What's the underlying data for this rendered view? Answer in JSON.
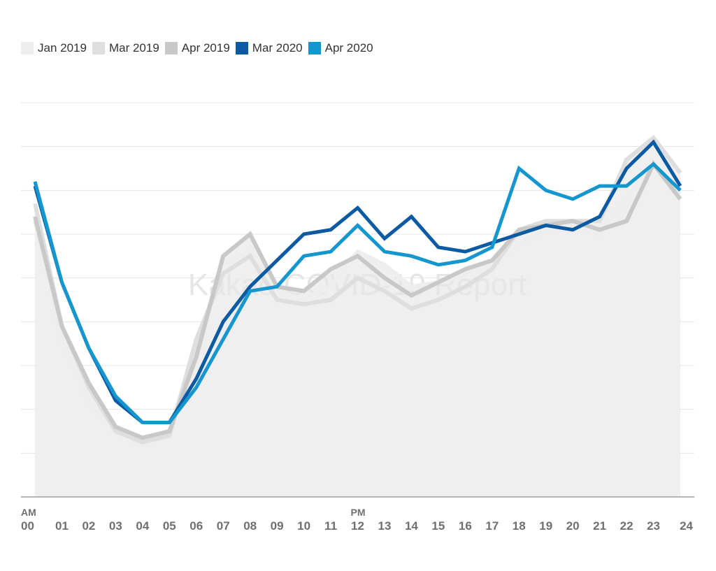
{
  "chart_data": {
    "type": "line",
    "title": "",
    "xlabel": "",
    "ylabel": "",
    "watermark": "Kakao COVID-19 Report",
    "x_tick_labels": [
      "00",
      "01",
      "02",
      "03",
      "04",
      "05",
      "06",
      "07",
      "08",
      "09",
      "10",
      "11",
      "12",
      "13",
      "14",
      "15",
      "16",
      "17",
      "18",
      "19",
      "20",
      "21",
      "22",
      "23",
      "24"
    ],
    "period_labels": [
      {
        "label": "AM",
        "at_index": 0
      },
      {
        "label": "PM",
        "at_index": 12
      }
    ],
    "ylim": [
      0,
      9
    ],
    "grid": true,
    "legend": "top-left",
    "series": [
      {
        "name": "Jan 2019",
        "color": "#eeeeee",
        "values": [
          6.3,
          3.6,
          2.2,
          1.45,
          1.2,
          1.5,
          3.3,
          5.3,
          5.6,
          4.7,
          4.5,
          4.8,
          5.6,
          5.3,
          4.8,
          4.9,
          5.1,
          5.3,
          5.8,
          6.1,
          6.1,
          6.0,
          6.8,
          7.6,
          7.0
        ]
      },
      {
        "name": "Mar 2019",
        "color": "#dedede",
        "values": [
          6.7,
          3.9,
          2.5,
          1.5,
          1.25,
          1.4,
          3.6,
          5.1,
          5.5,
          4.5,
          4.4,
          4.5,
          5.0,
          4.7,
          4.3,
          4.5,
          4.8,
          5.2,
          6.1,
          6.3,
          6.3,
          6.3,
          7.7,
          8.2,
          7.4
        ]
      },
      {
        "name": "Apr 2019",
        "color": "#c8c8c8",
        "values": [
          6.4,
          3.9,
          2.6,
          1.6,
          1.35,
          1.5,
          3.2,
          5.5,
          6.0,
          4.8,
          4.7,
          5.2,
          5.5,
          5.0,
          4.6,
          4.9,
          5.2,
          5.4,
          6.1,
          6.2,
          6.3,
          6.1,
          6.3,
          7.6,
          6.8
        ]
      },
      {
        "name": "Mar 2020",
        "color": "#0b5aa2",
        "values": [
          7.1,
          4.9,
          3.4,
          2.2,
          1.7,
          1.7,
          2.7,
          4.0,
          4.8,
          5.4,
          6.0,
          6.1,
          6.6,
          5.9,
          6.4,
          5.7,
          5.6,
          5.8,
          6.0,
          6.2,
          6.1,
          6.4,
          7.5,
          8.1,
          7.1
        ]
      },
      {
        "name": "Apr 2020",
        "color": "#1596cf",
        "values": [
          7.2,
          4.9,
          3.4,
          2.3,
          1.7,
          1.7,
          2.5,
          3.6,
          4.7,
          4.8,
          5.5,
          5.6,
          6.2,
          5.6,
          5.5,
          5.3,
          5.4,
          5.7,
          7.5,
          7.0,
          6.8,
          7.1,
          7.1,
          7.6,
          7.0
        ]
      }
    ]
  }
}
